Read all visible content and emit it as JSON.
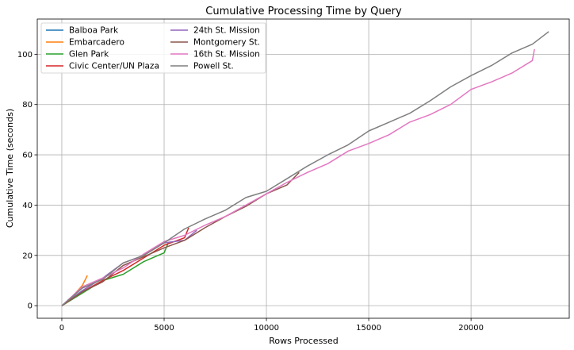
{
  "chart_data": {
    "type": "line",
    "title": "Cumulative Processing Time by Query",
    "xlabel": "Rows Processed",
    "ylabel": "Cumulative Time (seconds)",
    "xlim": [
      -1200,
      24800
    ],
    "ylim": [
      -5,
      114
    ],
    "xticks": [
      0,
      5000,
      10000,
      15000,
      20000
    ],
    "yticks": [
      0,
      20,
      40,
      60,
      80,
      100
    ],
    "grid": true,
    "legend_position": "top-left",
    "legend_columns": 2,
    "series": [
      {
        "name": "Balboa Park",
        "color": "#1f77b4",
        "x": [
          0,
          500,
          1000
        ],
        "y": [
          0,
          3,
          6
        ]
      },
      {
        "name": "Embarcadero",
        "color": "#ff7f0e",
        "x": [
          0,
          500,
          1000,
          1250
        ],
        "y": [
          0,
          3.5,
          8,
          12
        ]
      },
      {
        "name": "Glen Park",
        "color": "#2ca02c",
        "x": [
          0,
          1000,
          2000,
          3000,
          4000,
          5000,
          5200
        ],
        "y": [
          0,
          5,
          10,
          12.5,
          17.5,
          21,
          25
        ]
      },
      {
        "name": "Civic Center/UN Plaza",
        "color": "#d62728",
        "x": [
          0,
          1000,
          2000,
          3000,
          4000,
          5000,
          6000,
          6200
        ],
        "y": [
          0,
          5.5,
          10,
          14,
          19,
          24,
          27,
          31
        ]
      },
      {
        "name": "24th St. Mission",
        "color": "#9467bd",
        "x": [
          0,
          1000,
          2000,
          3000,
          4000,
          5000,
          6000,
          6600
        ],
        "y": [
          0,
          6,
          11,
          17,
          20,
          25,
          26,
          30
        ]
      },
      {
        "name": "Montgomery St.",
        "color": "#8c564b",
        "x": [
          0,
          1000,
          2000,
          3000,
          4000,
          5000,
          6000,
          7000,
          8000,
          9000,
          10000,
          11000,
          11600
        ],
        "y": [
          0,
          5.5,
          9.5,
          16,
          19.5,
          23,
          26,
          31,
          35.5,
          39.5,
          44.5,
          48,
          53
        ]
      },
      {
        "name": "16th St. Mission",
        "color": "#e377c2",
        "x": [
          0,
          1000,
          2000,
          3000,
          4000,
          5000,
          6000,
          7000,
          8000,
          9000,
          10000,
          11000,
          12000,
          13000,
          14000,
          15000,
          16000,
          17000,
          18000,
          19000,
          20000,
          21000,
          22000,
          23000,
          23100
        ],
        "y": [
          0,
          7.5,
          11,
          15,
          20.5,
          25.5,
          28,
          32,
          35.5,
          40,
          44.5,
          49,
          53,
          56.5,
          61.5,
          64.5,
          68,
          73,
          76,
          80,
          86,
          89,
          92.5,
          97.5,
          102
        ]
      },
      {
        "name": "Powell St.",
        "color": "#7f7f7f",
        "x": [
          0,
          1000,
          2000,
          3000,
          4000,
          5000,
          6000,
          7000,
          8000,
          9000,
          10000,
          11000,
          12000,
          13000,
          14000,
          15000,
          16000,
          17000,
          18000,
          19000,
          20000,
          21000,
          22000,
          23000,
          23800
        ],
        "y": [
          0,
          7,
          10.5,
          17,
          20,
          25,
          30.5,
          34.5,
          38,
          43,
          45.5,
          50.5,
          55.5,
          60,
          64,
          69.5,
          73,
          76.5,
          81.5,
          87,
          91.5,
          95.5,
          100.5,
          104,
          109
        ]
      }
    ]
  }
}
